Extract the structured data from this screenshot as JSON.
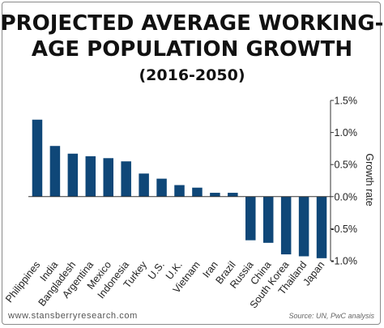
{
  "header": {
    "title_line1": "PROJECTED AVERAGE WORKING-",
    "title_line2": "AGE POPULATION GROWTH",
    "subtitle": "(2016-2050)"
  },
  "footer": {
    "website": "www.stansberryresearch.com",
    "source": "Source: UN, PwC analysis"
  },
  "chart_data": {
    "type": "bar",
    "title": "PROJECTED AVERAGE WORKING-AGE POPULATION GROWTH",
    "subtitle": "(2016-2050)",
    "xlabel": "",
    "ylabel": "Growth rate",
    "ylim": [
      -1.0,
      1.5
    ],
    "yticks": [
      1.5,
      1.0,
      0.5,
      0.0,
      -0.5,
      -1.0
    ],
    "ytick_labels": [
      "1.5%",
      "1.0%",
      "0.5%",
      "0.0%",
      "-0.5%",
      "-1.0%"
    ],
    "y_axis_side": "right",
    "grid": false,
    "bar_color": "#0f4778",
    "categories": [
      "Philippines",
      "India",
      "Bangladesh",
      "Argentina",
      "Mexico",
      "Indonesia",
      "Turkey",
      "U.S.",
      "U.K.",
      "Vietnam",
      "Iran",
      "Brazil",
      "Russia",
      "China",
      "South Korea",
      "Thailand",
      "Japan"
    ],
    "values": [
      1.2,
      0.79,
      0.67,
      0.63,
      0.6,
      0.55,
      0.36,
      0.28,
      0.18,
      0.14,
      0.06,
      0.06,
      -0.68,
      -0.72,
      -0.9,
      -0.93,
      -0.96
    ]
  }
}
